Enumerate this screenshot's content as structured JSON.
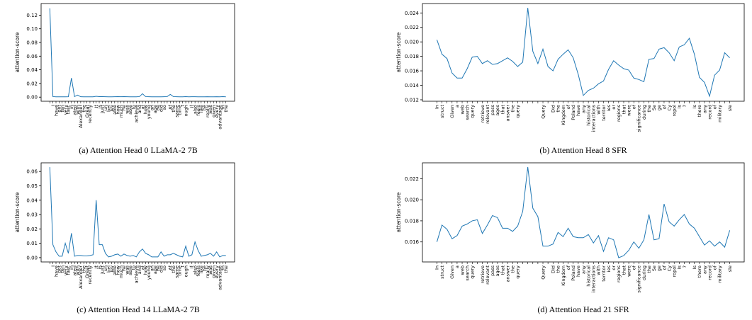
{
  "chart_data": [
    {
      "type": "line",
      "caption": "(a) Attention Head 0 LLaMA-2 7B",
      "ylabel": "attention-score",
      "color": "#1f77b4",
      "grid": false,
      "categories": [
        null,
        "I",
        "have",
        "got",
        "ten",
        "very",
        "fasc",
        "in",
        "ated",
        "with",
        "Alexander",
        "the",
        "Great",
        "recently",
        ".",
        "It",
        "is",
        "just",
        "un",
        "bel",
        "iev",
        "able",
        "how",
        "much",
        "he",
        "was",
        "able",
        "to",
        "achieve",
        "and",
        "at",
        "how",
        "young",
        "an",
        "age",
        "he",
        "did",
        "so",
        ".",
        "At",
        "the",
        "same",
        "time",
        "t",
        "ough",
        ",",
        "it",
        "also",
        "feels",
        "like",
        "he",
        "really",
        "was",
        "given",
        "every",
        "advantage",
        "in",
        "the"
      ],
      "values": [
        0.13,
        0.0008,
        0.0005,
        0.0005,
        0.0005,
        0.0005,
        0.0006,
        0.028,
        0.0008,
        0.003,
        0.0006,
        0.0005,
        0.0005,
        0.0005,
        0.0005,
        0.0012,
        0.0008,
        0.0008,
        0.0006,
        0.0005,
        0.0005,
        0.0006,
        0.0008,
        0.0006,
        0.0008,
        0.0006,
        0.0005,
        0.0005,
        0.0005,
        0.0008,
        0.005,
        0.0008,
        0.0006,
        0.0005,
        0.0005,
        0.0005,
        0.0005,
        0.0006,
        0.0008,
        0.004,
        0.0008,
        0.0006,
        0.0005,
        0.0005,
        0.0008,
        0.0005,
        0.0006,
        0.0006,
        0.0005,
        0.0005,
        0.0005,
        0.0006,
        0.0005,
        0.0005,
        0.0006,
        0.0005,
        0.0008,
        0.0005
      ],
      "ylim": [
        -0.006,
        0.137
      ],
      "yticks": [
        {
          "value": 0,
          "label": "0.00"
        },
        {
          "value": 0.02,
          "label": "0.02"
        },
        {
          "value": 0.04,
          "label": "0.04"
        },
        {
          "value": 0.06,
          "label": "0.06"
        },
        {
          "value": 0.08,
          "label": "0.08"
        },
        {
          "value": 0.1,
          "label": "0.10"
        },
        {
          "value": 0.12,
          "label": "0.12"
        }
      ]
    },
    {
      "type": "line",
      "caption": "(b) Attention Head 8 SFR",
      "ylabel": "attention-score",
      "color": "#1f77b4",
      "grid": false,
      "categories": [
        "In",
        "struct",
        null,
        "Given",
        "a",
        "web",
        "search",
        "query",
        null,
        "retrieve",
        "relevant",
        "pass",
        "ages",
        "that",
        "answer",
        "the",
        "query",
        null,
        null,
        null,
        null,
        "Query",
        null,
        "Did",
        "the",
        "Kingdom",
        "of",
        "Poland",
        "have",
        "any",
        "historical",
        "interactions",
        "with",
        "territor",
        "ies",
        "or",
        "regions",
        "that",
        "were",
        "of",
        "significance",
        "during",
        "the",
        "Se",
        "ge",
        "of",
        "Cy",
        "ropol",
        "is",
        "?",
        null,
        "Is",
        "there",
        "any",
        "record",
        "of",
        "military",
        null,
        "sle"
      ],
      "values": [
        0.0203,
        0.0183,
        0.0177,
        0.0157,
        0.015,
        0.015,
        0.0163,
        0.0179,
        0.018,
        0.017,
        0.0174,
        0.0169,
        0.017,
        0.0174,
        0.0178,
        0.0173,
        0.0166,
        0.0172,
        0.0247,
        0.0187,
        0.017,
        0.019,
        0.0166,
        0.016,
        0.0176,
        0.0183,
        0.0189,
        0.0178,
        0.0155,
        0.0126,
        0.0133,
        0.0136,
        0.0142,
        0.0146,
        0.0162,
        0.0174,
        0.0168,
        0.0163,
        0.0161,
        0.015,
        0.0148,
        0.0145,
        0.0176,
        0.0177,
        0.019,
        0.0192,
        0.0185,
        0.0174,
        0.0193,
        0.0196,
        0.0205,
        0.0183,
        0.0151,
        0.0144,
        0.0125,
        0.0154,
        0.0161,
        0.0185,
        0.0178
      ],
      "ylim": [
        0.0118,
        0.0253
      ],
      "yticks": [
        {
          "value": 0.012,
          "label": "0.012"
        },
        {
          "value": 0.014,
          "label": "0.014"
        },
        {
          "value": 0.016,
          "label": "0.016"
        },
        {
          "value": 0.018,
          "label": "0.018"
        },
        {
          "value": 0.02,
          "label": "0.020"
        },
        {
          "value": 0.022,
          "label": "0.022"
        },
        {
          "value": 0.024,
          "label": "0.024"
        }
      ]
    },
    {
      "type": "line",
      "caption": "(c) Attention Head 14 LLaMA-2 7B",
      "ylabel": "attention-score",
      "color": "#1f77b4",
      "grid": false,
      "categories": [
        null,
        "I",
        "have",
        "got",
        "ten",
        "very",
        "fasc",
        "in",
        "ated",
        "with",
        "Alexander",
        "the",
        "Great",
        "recently",
        ".",
        "It",
        "is",
        "just",
        "un",
        "bel",
        "iev",
        "able",
        "how",
        "much",
        "he",
        "was",
        "able",
        "to",
        "achieve",
        "and",
        "at",
        "how",
        "young",
        "an",
        "age",
        "he",
        "did",
        "so",
        ".",
        "At",
        "the",
        "same",
        "time",
        "t",
        "ough",
        ",",
        "it",
        "also",
        "feels",
        "like",
        "he",
        "really",
        "was",
        "given",
        "every",
        "advantage",
        "in",
        "the"
      ],
      "values": [
        0.063,
        0.009,
        0.004,
        0.001,
        0.001,
        0.01,
        0.003,
        0.017,
        0.001,
        0.0015,
        0.0015,
        0.0012,
        0.0012,
        0.0015,
        0.002,
        0.04,
        0.009,
        0.009,
        0.003,
        0.0005,
        0.001,
        0.002,
        0.0025,
        0.001,
        0.0025,
        0.0015,
        0.001,
        0.0015,
        0.0005,
        0.004,
        0.006,
        0.003,
        0.002,
        0.0005,
        0.0005,
        0.0005,
        0.004,
        0.001,
        0.002,
        0.002,
        0.003,
        0.002,
        0.001,
        0.0005,
        0.008,
        0.001,
        0.002,
        0.011,
        0.005,
        0.001,
        0.0015,
        0.002,
        0.003,
        0.001,
        0.004,
        0.0005,
        0.0015,
        0.0015
      ],
      "ylim": [
        -0.003,
        0.066
      ],
      "yticks": [
        {
          "value": 0,
          "label": "0.00"
        },
        {
          "value": 0.01,
          "label": "0.01"
        },
        {
          "value": 0.02,
          "label": "0.02"
        },
        {
          "value": 0.03,
          "label": "0.03"
        },
        {
          "value": 0.04,
          "label": "0.04"
        },
        {
          "value": 0.05,
          "label": "0.05"
        },
        {
          "value": 0.06,
          "label": "0.06"
        }
      ]
    },
    {
      "type": "line",
      "caption": "(d) Attention Head 21 SFR",
      "ylabel": "attention-score",
      "color": "#1f77b4",
      "grid": false,
      "categories": [
        "In",
        "struct",
        null,
        "Given",
        "a",
        "web",
        "search",
        "query",
        null,
        "retrieve",
        "relevant",
        "pass",
        "ages",
        "that",
        "answer",
        "the",
        "query",
        null,
        null,
        null,
        null,
        "Query",
        null,
        "Did",
        "the",
        "Kingdom",
        "of",
        "Poland",
        "have",
        "any",
        "historical",
        "interactions",
        "with",
        "territor",
        "ies",
        "or",
        "regions",
        "that",
        "were",
        "of",
        "significance",
        "during",
        "the",
        "Se",
        "ge",
        "of",
        "Cy",
        "ropol",
        "is",
        "?",
        null,
        "Is",
        "there",
        "any",
        "record",
        "of",
        "military",
        null,
        "sle"
      ],
      "values": [
        0.016,
        0.0176,
        0.0172,
        0.0163,
        0.0166,
        0.0175,
        0.0177,
        0.018,
        0.0181,
        0.0168,
        0.0176,
        0.0185,
        0.0183,
        0.0173,
        0.0173,
        0.017,
        0.0175,
        0.0189,
        0.0231,
        0.0192,
        0.0184,
        0.0156,
        0.0156,
        0.0158,
        0.0169,
        0.0165,
        0.0173,
        0.0165,
        0.0164,
        0.0164,
        0.0167,
        0.0159,
        0.0166,
        0.0151,
        0.0164,
        0.0162,
        0.0145,
        0.0147,
        0.0152,
        0.016,
        0.0154,
        0.0162,
        0.0186,
        0.0162,
        0.0163,
        0.0196,
        0.0179,
        0.0175,
        0.0181,
        0.0186,
        0.0177,
        0.0173,
        0.0165,
        0.0157,
        0.0161,
        0.0156,
        0.016,
        0.0155,
        0.0171
      ],
      "ylim": [
        0.0141,
        0.0235
      ],
      "yticks": [
        {
          "value": 0.016,
          "label": "0.016"
        },
        {
          "value": 0.018,
          "label": "0.018"
        },
        {
          "value": 0.02,
          "label": "0.020"
        },
        {
          "value": 0.022,
          "label": "0.022"
        }
      ]
    }
  ]
}
